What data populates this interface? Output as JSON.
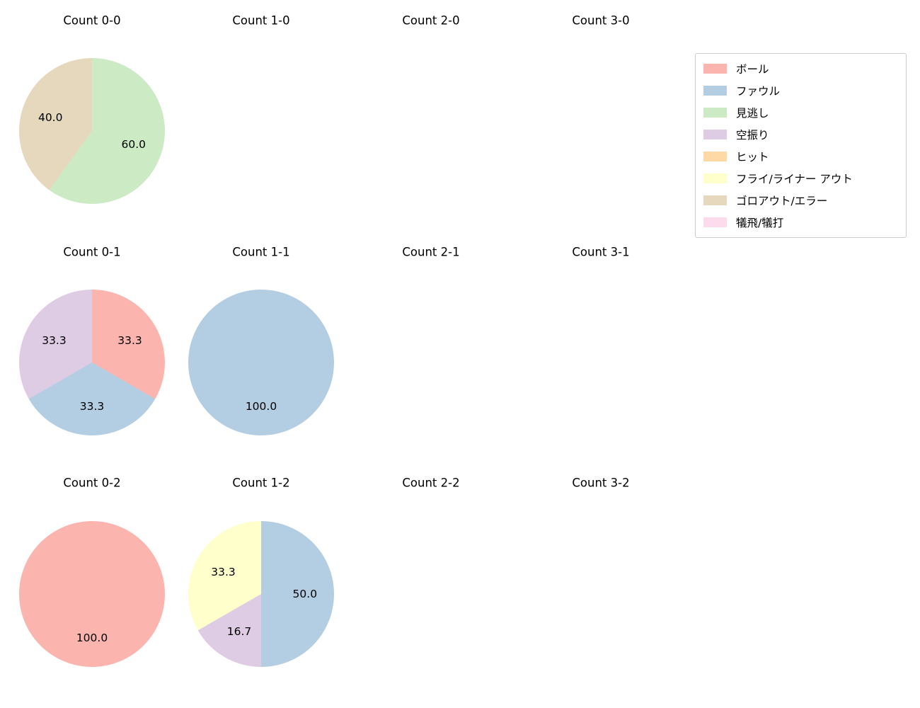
{
  "page": {
    "background": "#ffffff"
  },
  "legend": {
    "items": [
      {
        "label": "ボール",
        "color": "#fbb4ae"
      },
      {
        "label": "ファウル",
        "color": "#b3cde3"
      },
      {
        "label": "見逃し",
        "color": "#ccebc5"
      },
      {
        "label": "空振り",
        "color": "#decbe4"
      },
      {
        "label": "ヒット",
        "color": "#fed9a6"
      },
      {
        "label": "フライ/ライナー アウト",
        "color": "#ffffcc"
      },
      {
        "label": "ゴロアウト/エラー",
        "color": "#e5d8bd"
      },
      {
        "label": "犠飛/犠打",
        "color": "#fddaec"
      }
    ]
  },
  "chart_data": [
    {
      "type": "pie",
      "title": "Count 0-0",
      "start_angle_deg": 0,
      "direction": "clockwise",
      "slices": [
        {
          "label": "見逃し",
          "value": 60.0,
          "color": "#ccebc5"
        },
        {
          "label": "ゴロアウト/エラー",
          "value": 40.0,
          "color": "#e5d8bd"
        }
      ]
    },
    {
      "type": "pie",
      "title": "Count 1-0",
      "slices": []
    },
    {
      "type": "pie",
      "title": "Count 2-0",
      "slices": []
    },
    {
      "type": "pie",
      "title": "Count 3-0",
      "slices": []
    },
    {
      "type": "pie",
      "title": "Count 0-1",
      "start_angle_deg": 0,
      "direction": "clockwise",
      "slices": [
        {
          "label": "ボール",
          "value": 33.3,
          "color": "#fbb4ae"
        },
        {
          "label": "ファウル",
          "value": 33.3,
          "color": "#b3cde3"
        },
        {
          "label": "空振り",
          "value": 33.3,
          "color": "#decbe4"
        }
      ]
    },
    {
      "type": "pie",
      "title": "Count 1-1",
      "start_angle_deg": 0,
      "direction": "clockwise",
      "slices": [
        {
          "label": "ファウル",
          "value": 100.0,
          "color": "#b3cde3"
        }
      ]
    },
    {
      "type": "pie",
      "title": "Count 2-1",
      "slices": []
    },
    {
      "type": "pie",
      "title": "Count 3-1",
      "slices": []
    },
    {
      "type": "pie",
      "title": "Count 0-2",
      "start_angle_deg": 0,
      "direction": "clockwise",
      "slices": [
        {
          "label": "ボール",
          "value": 100.0,
          "color": "#fbb4ae"
        }
      ]
    },
    {
      "type": "pie",
      "title": "Count 1-2",
      "start_angle_deg": 0,
      "direction": "clockwise",
      "slices": [
        {
          "label": "ファウル",
          "value": 50.0,
          "color": "#b3cde3"
        },
        {
          "label": "空振り",
          "value": 16.7,
          "color": "#decbe4"
        },
        {
          "label": "フライ/ライナー アウト",
          "value": 33.3,
          "color": "#ffffcc"
        }
      ]
    },
    {
      "type": "pie",
      "title": "Count 2-2",
      "slices": []
    },
    {
      "type": "pie",
      "title": "Count 3-2",
      "slices": []
    }
  ]
}
